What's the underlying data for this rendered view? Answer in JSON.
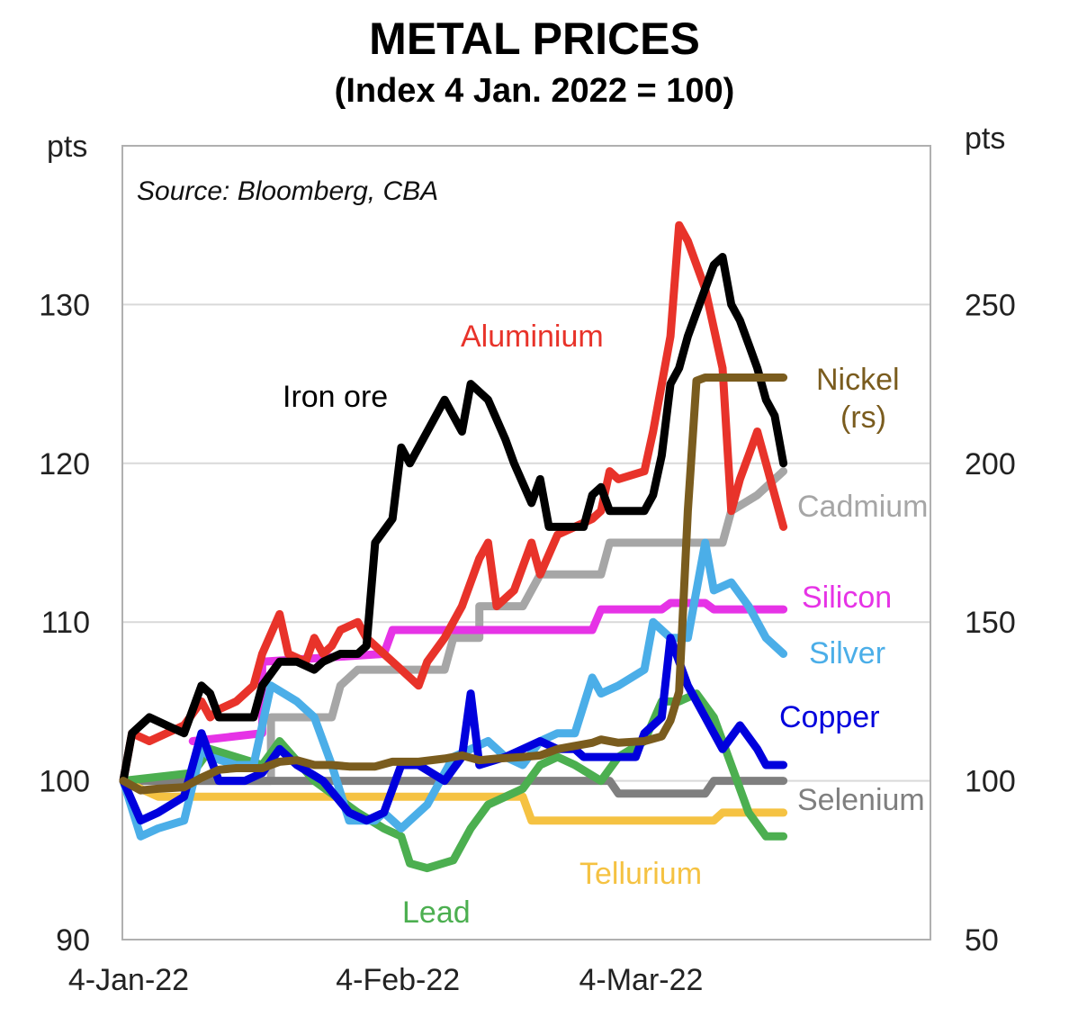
{
  "title": "METAL PRICES",
  "subtitle": "(Index 4 Jan. 2022 = 100)",
  "chart_data": {
    "type": "line",
    "source_note": "Source: Bloomberg, CBA",
    "y_left": {
      "label": "pts",
      "ticks": [
        90,
        100,
        110,
        120,
        130
      ],
      "range": [
        90,
        140
      ]
    },
    "y_right": {
      "label": "pts",
      "ticks": [
        50,
        100,
        150,
        200,
        250
      ],
      "range": [
        50,
        300
      ]
    },
    "x_ticks": [
      {
        "day": 0,
        "label": "4-Jan-22"
      },
      {
        "day": 31,
        "label": "4-Feb-22"
      },
      {
        "day": 59,
        "label": "4-Mar-22"
      }
    ],
    "x_range_days": [
      0,
      92
    ],
    "grid": true,
    "series": [
      {
        "name": "Cadmium",
        "color": "#a6a6a6",
        "axis": "left",
        "points": [
          [
            0,
            100
          ],
          [
            10,
            100
          ],
          [
            17,
            100
          ],
          [
            17,
            104
          ],
          [
            24,
            104
          ],
          [
            25,
            106
          ],
          [
            27,
            107
          ],
          [
            37,
            107
          ],
          [
            38,
            109
          ],
          [
            41,
            109
          ],
          [
            41,
            111
          ],
          [
            46,
            111
          ],
          [
            48,
            113
          ],
          [
            55,
            113
          ],
          [
            56,
            115
          ],
          [
            69,
            115
          ],
          [
            70,
            117
          ],
          [
            73,
            118
          ],
          [
            76,
            119.5
          ]
        ]
      },
      {
        "name": "Silicon",
        "color": "#e633e6",
        "axis": "left",
        "points": [
          [
            8,
            102.5
          ],
          [
            16,
            103
          ],
          [
            16,
            107.5
          ],
          [
            30,
            108
          ],
          [
            31,
            109.5
          ],
          [
            54,
            109.5
          ],
          [
            55,
            110.8
          ],
          [
            62,
            110.8
          ],
          [
            63,
            111.2
          ],
          [
            67,
            111.2
          ],
          [
            68,
            110.8
          ],
          [
            76,
            110.8
          ]
        ]
      },
      {
        "name": "Selenium",
        "color": "#7f7f7f",
        "axis": "left",
        "points": [
          [
            0,
            100
          ],
          [
            56,
            100
          ],
          [
            57,
            99.2
          ],
          [
            67,
            99.2
          ],
          [
            68,
            100
          ],
          [
            76,
            100
          ]
        ]
      },
      {
        "name": "Tellurium",
        "color": "#f5c242",
        "axis": "left",
        "points": [
          [
            0,
            100
          ],
          [
            4,
            99
          ],
          [
            46,
            99
          ],
          [
            47,
            97.5
          ],
          [
            68,
            97.5
          ],
          [
            69,
            98
          ],
          [
            76,
            98
          ]
        ]
      },
      {
        "name": "Lead",
        "color": "#4caf50",
        "axis": "left",
        "points": [
          [
            0,
            100
          ],
          [
            8,
            100.5
          ],
          [
            10,
            102
          ],
          [
            16,
            101
          ],
          [
            18,
            102.5
          ],
          [
            22,
            100
          ],
          [
            27,
            98
          ],
          [
            30,
            97
          ],
          [
            32,
            96.5
          ],
          [
            33,
            94.8
          ],
          [
            35,
            94.5
          ],
          [
            38,
            95
          ],
          [
            40,
            97
          ],
          [
            42,
            98.5
          ],
          [
            46,
            99.5
          ],
          [
            48,
            101
          ],
          [
            50,
            101.5
          ],
          [
            52,
            101
          ],
          [
            55,
            100
          ],
          [
            57,
            101.5
          ],
          [
            60,
            102.5
          ],
          [
            62,
            105
          ],
          [
            64,
            105
          ],
          [
            66,
            105.5
          ],
          [
            68,
            104
          ],
          [
            70,
            101
          ],
          [
            72,
            98
          ],
          [
            74,
            96.5
          ],
          [
            76,
            96.5
          ]
        ]
      },
      {
        "name": "Silver",
        "color": "#4baee8",
        "axis": "left",
        "points": [
          [
            0,
            100
          ],
          [
            2,
            96.5
          ],
          [
            4,
            97
          ],
          [
            7,
            97.5
          ],
          [
            9,
            102
          ],
          [
            10,
            101.5
          ],
          [
            13,
            101
          ],
          [
            15,
            101
          ],
          [
            17,
            106
          ],
          [
            20,
            105
          ],
          [
            22,
            104
          ],
          [
            24,
            101
          ],
          [
            26,
            97.5
          ],
          [
            29,
            97.5
          ],
          [
            30,
            98
          ],
          [
            32,
            97
          ],
          [
            35,
            98.5
          ],
          [
            38,
            101.5
          ],
          [
            40,
            102
          ],
          [
            42,
            102.5
          ],
          [
            44,
            101.5
          ],
          [
            46,
            101
          ],
          [
            48,
            102.5
          ],
          [
            50,
            103
          ],
          [
            52,
            103
          ],
          [
            54,
            106.5
          ],
          [
            55,
            105.5
          ],
          [
            57,
            106
          ],
          [
            60,
            107
          ],
          [
            61,
            110
          ],
          [
            63,
            109
          ],
          [
            65,
            109
          ],
          [
            67,
            115
          ],
          [
            68,
            112
          ],
          [
            70,
            112.5
          ],
          [
            72,
            111
          ],
          [
            74,
            109
          ],
          [
            76,
            108
          ]
        ]
      },
      {
        "name": "Copper",
        "color": "#0000dd",
        "axis": "left",
        "points": [
          [
            0,
            100
          ],
          [
            2,
            97.5
          ],
          [
            4,
            98
          ],
          [
            7,
            99
          ],
          [
            9,
            103
          ],
          [
            11,
            100
          ],
          [
            14,
            100
          ],
          [
            16,
            100.5
          ],
          [
            18,
            102
          ],
          [
            20,
            101
          ],
          [
            23,
            100
          ],
          [
            26,
            98
          ],
          [
            28,
            97.5
          ],
          [
            30,
            98
          ],
          [
            32,
            101
          ],
          [
            34,
            101
          ],
          [
            37,
            100
          ],
          [
            39,
            101.5
          ],
          [
            40,
            105.5
          ],
          [
            41,
            101
          ],
          [
            44,
            101.5
          ],
          [
            46,
            102
          ],
          [
            48,
            102.5
          ],
          [
            50,
            102
          ],
          [
            52,
            102
          ],
          [
            53,
            101.5
          ],
          [
            55,
            101.5
          ],
          [
            57,
            101.5
          ],
          [
            59,
            101.5
          ],
          [
            60,
            103
          ],
          [
            62,
            104
          ],
          [
            63,
            109
          ],
          [
            65,
            106
          ],
          [
            67,
            104
          ],
          [
            69,
            102
          ],
          [
            71,
            103.5
          ],
          [
            73,
            102
          ],
          [
            74,
            101
          ],
          [
            76,
            101
          ]
        ]
      },
      {
        "name": "Aluminium",
        "color": "#e8332a",
        "axis": "left",
        "points": [
          [
            0,
            100
          ],
          [
            1,
            103
          ],
          [
            3,
            102.5
          ],
          [
            5,
            103
          ],
          [
            7,
            103.5
          ],
          [
            9,
            105
          ],
          [
            10,
            104
          ],
          [
            11,
            104.5
          ],
          [
            13,
            105
          ],
          [
            15,
            106
          ],
          [
            16,
            108
          ],
          [
            18,
            110.5
          ],
          [
            19,
            108
          ],
          [
            21,
            107.5
          ],
          [
            22,
            109
          ],
          [
            23,
            108
          ],
          [
            24,
            108.5
          ],
          [
            25,
            109.5
          ],
          [
            27,
            110
          ],
          [
            28,
            109
          ],
          [
            30,
            108
          ],
          [
            32,
            107
          ],
          [
            34,
            106
          ],
          [
            35,
            107.5
          ],
          [
            37,
            109
          ],
          [
            39,
            111
          ],
          [
            41,
            114
          ],
          [
            42,
            115
          ],
          [
            43,
            111
          ],
          [
            45,
            112
          ],
          [
            47,
            115
          ],
          [
            48,
            113
          ],
          [
            50,
            115.5
          ],
          [
            52,
            116
          ],
          [
            54,
            116.5
          ],
          [
            55,
            117
          ],
          [
            56,
            119.5
          ],
          [
            57,
            119
          ],
          [
            60,
            119.5
          ],
          [
            61,
            122
          ],
          [
            63,
            128
          ],
          [
            64,
            135
          ],
          [
            65,
            134
          ],
          [
            67,
            131
          ],
          [
            69,
            126
          ],
          [
            70,
            117
          ],
          [
            71,
            119
          ],
          [
            72,
            120.5
          ],
          [
            73,
            122
          ],
          [
            74,
            120
          ],
          [
            75,
            118
          ],
          [
            76,
            116
          ]
        ]
      },
      {
        "name": "Iron ore",
        "color": "#000000",
        "axis": "left",
        "points": [
          [
            0,
            100
          ],
          [
            1,
            103
          ],
          [
            3,
            104
          ],
          [
            5,
            103.5
          ],
          [
            7,
            103
          ],
          [
            9,
            106
          ],
          [
            10,
            105.5
          ],
          [
            11,
            104
          ],
          [
            13,
            104
          ],
          [
            15,
            104
          ],
          [
            16,
            106
          ],
          [
            18,
            107.5
          ],
          [
            20,
            107.5
          ],
          [
            22,
            107
          ],
          [
            23,
            107.5
          ],
          [
            25,
            108
          ],
          [
            27,
            108
          ],
          [
            28,
            108.5
          ],
          [
            29,
            115
          ],
          [
            31,
            116.5
          ],
          [
            32,
            121
          ],
          [
            33,
            120
          ],
          [
            35,
            122
          ],
          [
            37,
            124
          ],
          [
            39,
            122
          ],
          [
            40,
            125
          ],
          [
            42,
            124
          ],
          [
            44,
            121.5
          ],
          [
            45,
            120
          ],
          [
            47,
            117.5
          ],
          [
            48,
            119
          ],
          [
            49,
            116
          ],
          [
            51,
            116
          ],
          [
            53,
            116
          ],
          [
            54,
            118
          ],
          [
            55,
            118.5
          ],
          [
            56,
            117
          ],
          [
            58,
            117
          ],
          [
            60,
            117
          ],
          [
            61,
            118
          ],
          [
            62,
            120.5
          ],
          [
            63,
            125
          ],
          [
            64,
            126
          ],
          [
            65,
            128
          ],
          [
            66,
            129.5
          ],
          [
            67,
            131
          ],
          [
            68,
            132.5
          ],
          [
            69,
            133
          ],
          [
            70,
            130
          ],
          [
            71,
            129
          ],
          [
            72,
            127.5
          ],
          [
            73,
            126
          ],
          [
            74,
            124
          ],
          [
            75,
            123
          ],
          [
            76,
            120
          ]
        ]
      },
      {
        "name": "Nickel (rs)",
        "color": "#7a5c1e",
        "axis": "right",
        "points": [
          [
            0,
            100
          ],
          [
            2,
            97
          ],
          [
            4,
            97.5
          ],
          [
            7,
            98
          ],
          [
            9,
            101
          ],
          [
            11,
            103.5
          ],
          [
            13,
            104
          ],
          [
            16,
            104
          ],
          [
            18,
            106
          ],
          [
            20,
            106.5
          ],
          [
            22,
            105
          ],
          [
            24,
            105
          ],
          [
            26,
            104.5
          ],
          [
            29,
            104.5
          ],
          [
            31,
            106
          ],
          [
            34,
            106
          ],
          [
            37,
            107
          ],
          [
            39,
            108
          ],
          [
            41,
            106.5
          ],
          [
            43,
            107
          ],
          [
            46,
            107.5
          ],
          [
            48,
            108
          ],
          [
            50,
            110
          ],
          [
            52,
            111
          ],
          [
            54,
            112
          ],
          [
            55,
            113
          ],
          [
            57,
            112
          ],
          [
            60,
            112.5
          ],
          [
            62,
            114
          ],
          [
            63,
            119
          ],
          [
            64,
            128
          ],
          [
            65,
            185
          ],
          [
            66,
            226
          ],
          [
            67,
            227
          ],
          [
            72,
            227
          ],
          [
            76,
            227
          ]
        ]
      }
    ],
    "labels": [
      {
        "text": "Aluminium",
        "series": "Aluminium"
      },
      {
        "text": "Iron ore",
        "series": "Iron ore"
      },
      {
        "text": "Nickel",
        "series": "Nickel (rs)"
      },
      {
        "text": "(rs)",
        "series": "Nickel (rs)"
      },
      {
        "text": "Cadmium",
        "series": "Cadmium"
      },
      {
        "text": "Silicon",
        "series": "Silicon"
      },
      {
        "text": "Silver",
        "series": "Silver"
      },
      {
        "text": "Copper",
        "series": "Copper"
      },
      {
        "text": "Selenium",
        "series": "Selenium"
      },
      {
        "text": "Tellurium",
        "series": "Tellurium"
      },
      {
        "text": "Lead",
        "series": "Lead"
      }
    ]
  }
}
